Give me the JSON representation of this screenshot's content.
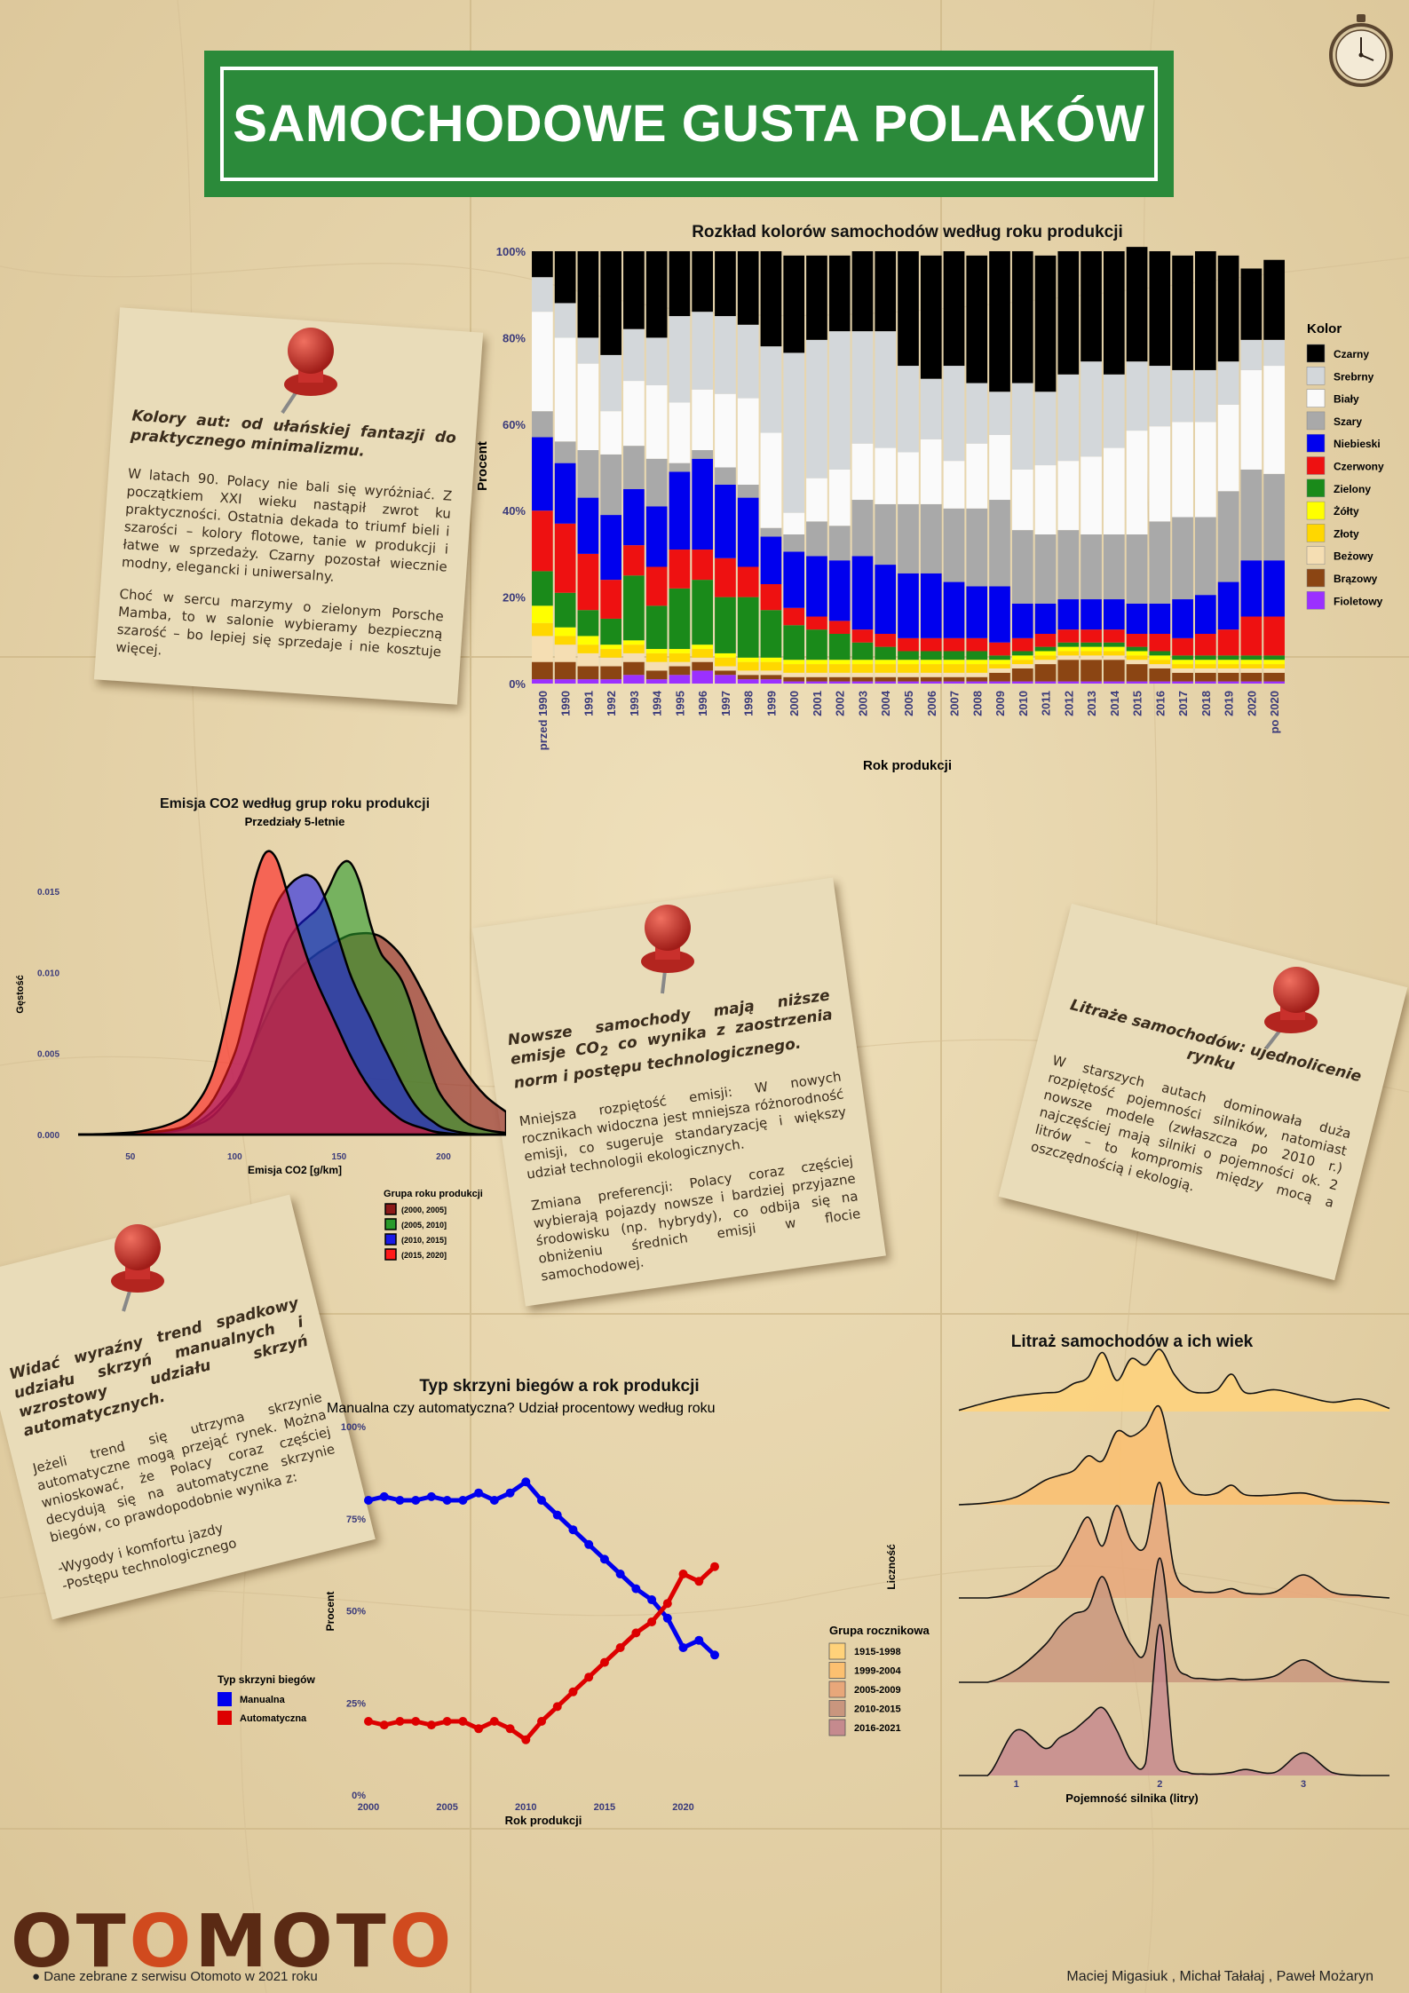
{
  "header": {
    "title": "SAMOCHODOWE GUSTA POLAKÓW"
  },
  "colors": {
    "title_bg": "#2b8a3a",
    "background": "#e8d7ae",
    "note_bg": "#e9dcb9",
    "pin": "#c9302c",
    "logo_dark": "#5a2a14",
    "logo_accent": "#d04a1e"
  },
  "notes": {
    "colors": {
      "heading": "Kolory aut: od ułańskiej fantazji do praktycznego minimalizmu.",
      "p1": "W latach 90. Polacy nie bali się wyróżniać. Z początkiem XXI wieku nastąpił zwrot ku praktyczności. Ostatnia dekada to triumf bieli i szarości – kolory flotowe, tanie w produkcji i łatwe w sprzedaży. Czarny pozostał wiecznie modny, elegancki i uniwersalny.",
      "p2": "Choć w sercu marzymy o zielonym Porsche Mamba, to w salonie wybieramy bezpieczną szarość – bo lepiej się sprzedaje i nie kosztuje więcej."
    },
    "emissions": {
      "heading_a": "Nowsze samochody mają niższe emisje CO",
      "heading_sub": "2",
      "heading_b": " co wynika z zaostrzenia norm i postępu technologicznego.",
      "p1": "Mniejsza rozpiętość emisji: W nowych rocznikach widoczna jest mniejsza różnorodność emisji, co sugeruje standaryzację i większy udział technologii ekologicznych.",
      "p2": "Zmiana preferencji: Polacy coraz częściej wybierają pojazdy nowsze i bardziej przyjazne środowisku (np. hybrydy), co odbija się na obniżeniu średnich emisji w flocie samochodowej."
    },
    "engine": {
      "heading": "Litraże samochodów: ujednolicenie rynku",
      "p1": "W starszych autach dominowała duża rozpiętość pojemności silników, natomiast nowsze modele (zwłaszcza po 2010 r.) najczęściej mają silniki o pojemności ok. 2 litrów – to kompromis między mocą a oszczędnością i ekologią."
    },
    "gearbox": {
      "heading": "Widać wyraźny trend spadkowy udziału skrzyń manualnych i wzrostowy udziału skrzyń automatycznych.",
      "p1": "Jeżeli trend się utrzyma skrzynie automatyczne mogą przejąć rynek. Można wnioskować, że Polacy coraz częściej decydują się na automatyczne skrzynie biegów, co prawdopodobnie wynika z:",
      "l1": "-Wygody i komfortu jazdy",
      "l2": "-Postępu technologicznego"
    }
  },
  "chart_data": [
    {
      "type": "bar",
      "stacked": true,
      "title": "Rozkład kolorów samochodów według roku produkcji",
      "xlabel": "Rok produkcji",
      "ylabel": "Procent",
      "ylim": [
        0,
        100
      ],
      "ytick_labels": [
        "0%",
        "20%",
        "40%",
        "60%",
        "80%",
        "100%"
      ],
      "legend_title": "Kolor",
      "legend_position": "right",
      "categories": [
        "przed 1990",
        "1990",
        "1991",
        "1992",
        "1993",
        "1994",
        "1995",
        "1996",
        "1997",
        "1998",
        "1999",
        "2000",
        "2001",
        "2002",
        "2003",
        "2004",
        "2005",
        "2006",
        "2007",
        "2008",
        "2009",
        "2010",
        "2011",
        "2012",
        "2013",
        "2014",
        "2015",
        "2016",
        "2017",
        "2018",
        "2019",
        "2020",
        "po 2020"
      ],
      "series": [
        {
          "name": "Fioletowy",
          "color": "#9b30ff",
          "values": [
            1,
            1,
            1,
            1,
            2,
            1,
            2,
            3,
            2,
            1,
            1,
            0.5,
            0.5,
            0.5,
            0.5,
            0.5,
            0.5,
            0.5,
            0.5,
            0.5,
            0.5,
            0.5,
            0.5,
            0.5,
            0.5,
            0.5,
            0.5,
            0.5,
            0.5,
            0.5,
            0.5,
            0.5,
            0.5
          ]
        },
        {
          "name": "Brązowy",
          "color": "#8b4513",
          "values": [
            4,
            4,
            3,
            3,
            3,
            2,
            2,
            2,
            1,
            1,
            1,
            1,
            1,
            1,
            1,
            1,
            1,
            1,
            1,
            1,
            2,
            3,
            4,
            5,
            5,
            5,
            4,
            3,
            2,
            2,
            2,
            2,
            2
          ]
        },
        {
          "name": "Beżowy",
          "color": "#f5deb3",
          "values": [
            6,
            4,
            3,
            2,
            2,
            2,
            1,
            1,
            1,
            1,
            1,
            1,
            1,
            1,
            1,
            1,
            1,
            1,
            1,
            1,
            1,
            1,
            1,
            1,
            1,
            1,
            1,
            1,
            1,
            1,
            1,
            1,
            1
          ]
        },
        {
          "name": "Złoty",
          "color": "#ffd700",
          "values": [
            3,
            2,
            2,
            2,
            2,
            2,
            2,
            2,
            2,
            2,
            2,
            2,
            2,
            2,
            2,
            2,
            2,
            2,
            2,
            2,
            1,
            1,
            1,
            1,
            1,
            1,
            1,
            1,
            1,
            1,
            1,
            1,
            1
          ]
        },
        {
          "name": "Żółty",
          "color": "#ffff00",
          "values": [
            4,
            2,
            2,
            1,
            1,
            1,
            1,
            1,
            1,
            1,
            1,
            1,
            1,
            1,
            1,
            1,
            1,
            1,
            1,
            1,
            1,
            1,
            1,
            1,
            1,
            1,
            1,
            1,
            1,
            1,
            1,
            1,
            1
          ]
        },
        {
          "name": "Zielony",
          "color": "#1a8a1a",
          "values": [
            8,
            8,
            6,
            6,
            15,
            10,
            14,
            15,
            13,
            14,
            11,
            8,
            7,
            6,
            4,
            3,
            2,
            2,
            2,
            2,
            1,
            1,
            1,
            1,
            1,
            1,
            1,
            1,
            1,
            1,
            1,
            1,
            1
          ]
        },
        {
          "name": "Czerwony",
          "color": "#ee1111",
          "values": [
            14,
            16,
            13,
            9,
            7,
            9,
            9,
            7,
            9,
            7,
            6,
            4,
            3,
            3,
            3,
            3,
            3,
            3,
            3,
            3,
            3,
            3,
            3,
            3,
            3,
            3,
            3,
            4,
            4,
            5,
            6,
            9,
            9
          ]
        },
        {
          "name": "Niebieski",
          "color": "#0000ee",
          "values": [
            17,
            14,
            13,
            15,
            13,
            14,
            18,
            21,
            17,
            16,
            11,
            13,
            14,
            14,
            17,
            16,
            15,
            15,
            13,
            12,
            13,
            8,
            7,
            7,
            7,
            7,
            7,
            7,
            9,
            9,
            11,
            13,
            13
          ]
        },
        {
          "name": "Szary",
          "color": "#a9a9a9",
          "values": [
            6,
            5,
            11,
            14,
            10,
            11,
            2,
            2,
            4,
            3,
            2,
            4,
            8,
            8,
            13,
            14,
            16,
            16,
            17,
            18,
            20,
            17,
            16,
            16,
            15,
            15,
            16,
            19,
            19,
            18,
            21,
            21,
            20
          ]
        },
        {
          "name": "Biały",
          "color": "#fafafa",
          "values": [
            23,
            24,
            20,
            10,
            15,
            17,
            14,
            14,
            17,
            20,
            22,
            5,
            10,
            13,
            13,
            13,
            12,
            15,
            11,
            15,
            15,
            14,
            16,
            16,
            18,
            20,
            24,
            22,
            22,
            22,
            20,
            23,
            25
          ]
        },
        {
          "name": "Srebrny",
          "color": "#d3d7da",
          "values": [
            8,
            8,
            6,
            13,
            12,
            11,
            20,
            18,
            18,
            17,
            20,
            37,
            32,
            32,
            26,
            27,
            20,
            14,
            22,
            14,
            10,
            20,
            17,
            20,
            22,
            17,
            16,
            14,
            12,
            12,
            10,
            7,
            6
          ]
        },
        {
          "name": "Czarny",
          "color": "#000000",
          "values": [
            6,
            12,
            20,
            24,
            18,
            20,
            15,
            14,
            15,
            17,
            22,
            22.5,
            19.5,
            17.5,
            18.5,
            18.5,
            26.5,
            28.5,
            26.5,
            29.5,
            32.5,
            30.5,
            31.5,
            28.5,
            25.5,
            28.5,
            26.5,
            26.5,
            26.5,
            27.5,
            24.5,
            16.5,
            18.5
          ]
        }
      ]
    },
    {
      "type": "area",
      "subtype": "density",
      "title": "Emisja CO2 według grup roku produkcji",
      "subtitle": "Przedziały 5-letnie",
      "xlabel": "Emisja CO2 [g/km]",
      "ylabel": "Gęstość",
      "xlim": [
        25,
        230
      ],
      "ylim": [
        0,
        0.0185
      ],
      "xticks": [
        50,
        100,
        150,
        200
      ],
      "yticks": [
        0,
        0.005,
        0.01,
        0.015
      ],
      "ytick_labels": [
        "0.000",
        "0.005",
        "0.010",
        "0.015"
      ],
      "legend_title": "Grupa roku produkcji",
      "legend_position": "bottom-right",
      "x": [
        25,
        40,
        55,
        70,
        80,
        90,
        100,
        105,
        110,
        115,
        120,
        125,
        130,
        135,
        140,
        145,
        150,
        155,
        160,
        165,
        170,
        175,
        180,
        185,
        190,
        195,
        200,
        210,
        220,
        230
      ],
      "series": [
        {
          "name": "(2000, 2005]",
          "color": "#8b1a1a",
          "values": [
            0,
            0,
            0.0001,
            0.0003,
            0.0006,
            0.0015,
            0.003,
            0.0043,
            0.0058,
            0.0072,
            0.0085,
            0.0094,
            0.0101,
            0.0107,
            0.0112,
            0.0116,
            0.012,
            0.0123,
            0.0124,
            0.0124,
            0.0122,
            0.0117,
            0.011,
            0.01,
            0.0088,
            0.0075,
            0.0062,
            0.004,
            0.0024,
            0.0014
          ]
        },
        {
          "name": "(2005, 2010]",
          "color": "#2a9a2a",
          "values": [
            0,
            0,
            0.0001,
            0.0002,
            0.0005,
            0.0012,
            0.0028,
            0.0042,
            0.006,
            0.008,
            0.01,
            0.0118,
            0.0128,
            0.0134,
            0.014,
            0.0152,
            0.0165,
            0.0168,
            0.0155,
            0.013,
            0.0112,
            0.0104,
            0.0095,
            0.0078,
            0.0055,
            0.0035,
            0.0022,
            0.0008,
            0.0003,
            0.0001
          ]
        },
        {
          "name": "(2010, 2015]",
          "color": "#1a1ae6",
          "values": [
            0,
            0,
            0.0001,
            0.0003,
            0.0008,
            0.0022,
            0.005,
            0.0074,
            0.01,
            0.0125,
            0.0142,
            0.0152,
            0.0158,
            0.016,
            0.0155,
            0.014,
            0.012,
            0.01,
            0.0085,
            0.0072,
            0.0058,
            0.0045,
            0.0032,
            0.0021,
            0.0013,
            0.0008,
            0.0004,
            0.0001,
            0,
            0
          ]
        },
        {
          "name": "(2015, 2020]",
          "color": "#ff1a1a",
          "values": [
            0,
            5e-05,
            0.0002,
            0.0007,
            0.0016,
            0.004,
            0.0095,
            0.0128,
            0.0158,
            0.0174,
            0.017,
            0.015,
            0.0128,
            0.0108,
            0.0092,
            0.0078,
            0.0064,
            0.005,
            0.0038,
            0.0028,
            0.002,
            0.0014,
            0.0009,
            0.0006,
            0.0004,
            0.0002,
            0.0001,
            0,
            0,
            0
          ]
        }
      ]
    },
    {
      "type": "line",
      "title": "Typ skrzyni biegów a rok produkcji",
      "subtitle": "Manualna czy automatyczna? Udział procentowy według roku",
      "xlabel": "Rok produkcji",
      "ylabel": "Procent",
      "xlim": [
        2000,
        2022
      ],
      "ylim": [
        0,
        100
      ],
      "xticks": [
        2000,
        2005,
        2010,
        2015,
        2020
      ],
      "ytick_labels": [
        "0%",
        "25%",
        "50%",
        "75%",
        "100%"
      ],
      "legend_title": "Typ skrzyni biegów",
      "legend_position": "left",
      "x": [
        2000,
        2001,
        2002,
        2003,
        2004,
        2005,
        2006,
        2007,
        2008,
        2009,
        2010,
        2011,
        2012,
        2013,
        2014,
        2015,
        2016,
        2017,
        2018,
        2019,
        2020,
        2021,
        2022
      ],
      "series": [
        {
          "name": "Manualna",
          "color": "#0000ee",
          "values": [
            80,
            81,
            80,
            80,
            81,
            80,
            80,
            82,
            80,
            82,
            85,
            80,
            76,
            72,
            68,
            64,
            60,
            56,
            53,
            48,
            40,
            42,
            38
          ]
        },
        {
          "name": "Automatyczna",
          "color": "#dd0000",
          "values": [
            20,
            19,
            20,
            20,
            19,
            20,
            20,
            18,
            20,
            18,
            15,
            20,
            24,
            28,
            32,
            36,
            40,
            44,
            47,
            52,
            60,
            58,
            62
          ]
        }
      ]
    },
    {
      "type": "area",
      "subtype": "ridgeline",
      "title": "Litraż samochodów a ich wiek",
      "xlabel": "Pojemność silnika (litry)",
      "ylabel": "Liczność",
      "xlim": [
        0.6,
        3.6
      ],
      "xticks": [
        1,
        2,
        3
      ],
      "legend_title": "Grupa rocznikowa",
      "legend_position": "left",
      "x": [
        0.6,
        0.8,
        1.0,
        1.2,
        1.3,
        1.4,
        1.5,
        1.6,
        1.7,
        1.8,
        1.9,
        2.0,
        2.1,
        2.2,
        2.3,
        2.4,
        2.5,
        2.6,
        2.8,
        3.0,
        3.2,
        3.4,
        3.6
      ],
      "series": [
        {
          "name": "1915-1998",
          "color": "#ffd27a",
          "values": [
            0.02,
            0.15,
            0.25,
            0.3,
            0.32,
            0.45,
            0.55,
            0.95,
            0.5,
            0.85,
            0.75,
            1.0,
            0.6,
            0.35,
            0.3,
            0.35,
            0.6,
            0.3,
            0.35,
            0.25,
            0.15,
            0.2,
            0.05
          ]
        },
        {
          "name": "1999-2004",
          "color": "#fcc070",
          "values": [
            0,
            0.02,
            0.08,
            0.25,
            0.3,
            0.35,
            0.5,
            0.45,
            0.75,
            0.7,
            0.8,
            1.0,
            0.4,
            0.15,
            0.1,
            0.12,
            0.2,
            0.1,
            0.1,
            0.12,
            0.05,
            0.04,
            0.02
          ]
        },
        {
          "name": "2005-2009",
          "color": "#e8a77a",
          "values": [
            0,
            0,
            0.05,
            0.2,
            0.28,
            0.5,
            0.7,
            0.45,
            0.8,
            0.5,
            0.45,
            1.0,
            0.25,
            0.08,
            0.05,
            0.05,
            0.08,
            0.04,
            0.05,
            0.2,
            0.05,
            0.02,
            0
          ]
        },
        {
          "name": "2010-2015",
          "color": "#c9967e",
          "values": [
            0,
            0,
            0.1,
            0.3,
            0.45,
            0.55,
            0.6,
            0.85,
            0.55,
            0.3,
            0.25,
            1.0,
            0.2,
            0.05,
            0.03,
            0.02,
            0.03,
            0.02,
            0.05,
            0.18,
            0.05,
            0.01,
            0
          ]
        },
        {
          "name": "2016-2021",
          "color": "#c58a8e",
          "values": [
            0,
            0,
            0.3,
            0.18,
            0.25,
            0.3,
            0.38,
            0.45,
            0.3,
            0.1,
            0.08,
            1.0,
            0.1,
            0.02,
            0.01,
            0.01,
            0.02,
            0.04,
            0.02,
            0.15,
            0.02,
            0,
            0
          ]
        }
      ]
    }
  ],
  "footer": {
    "logo": "OTOMOTO",
    "source": "Dane zebrane z serwisu Otomoto w 2021 roku",
    "authors": "Maciej Migasiuk , Michał Tałałaj , Paweł Możaryn"
  }
}
